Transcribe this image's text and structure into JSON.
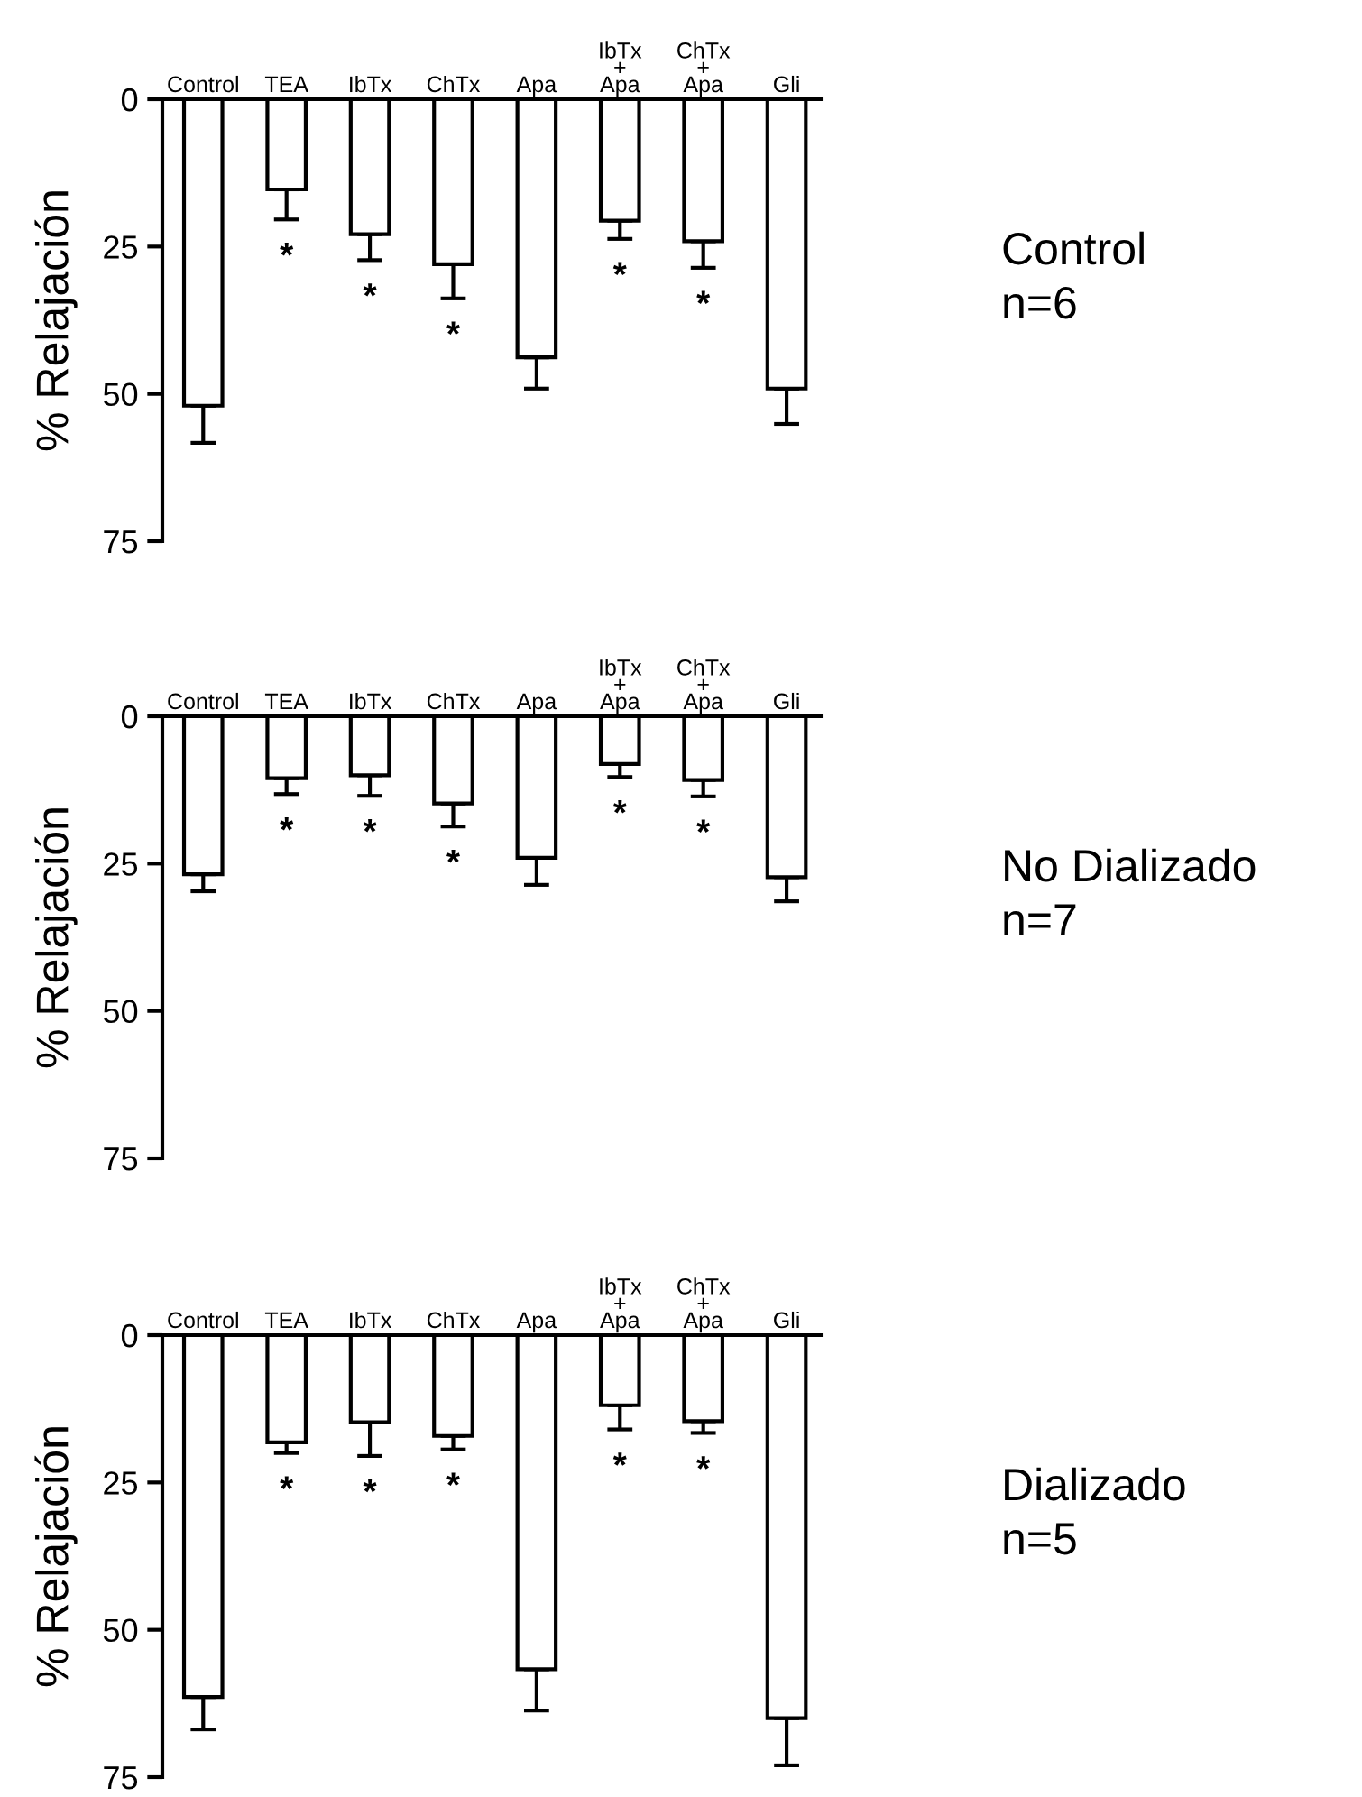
{
  "chart_data": [
    {
      "type": "bar",
      "ylabel": "% Relajación",
      "categories": [
        "Control",
        "TEA",
        "IbTx",
        "ChTx",
        "Apa",
        "IbTx\n+\nApa",
        "ChTx\n+\nApa",
        "Gli"
      ],
      "series": [
        {
          "color": "#ffffff",
          "values": [
            52,
            15.3,
            22.9,
            28,
            43.8,
            20.6,
            24.1,
            49.1
          ],
          "errors": [
            [
              52,
              58.3
            ],
            [
              15.3,
              20.4
            ],
            [
              22.9,
              27.3
            ],
            [
              28,
              33.8
            ],
            [
              43.8,
              49.1
            ],
            [
              20.6,
              23.7
            ],
            [
              24.1,
              28.6
            ],
            [
              49.1,
              55.1
            ]
          ]
        }
      ],
      "ylim": [
        75,
        0
      ],
      "yticks": [
        0,
        25,
        50,
        75
      ],
      "grid": false,
      "legend": false,
      "annotations": [
        {
          "text": "*",
          "x": "TEA",
          "y": 15.3
        },
        {
          "text": "*",
          "x": "IbTx",
          "y": 22.9
        },
        {
          "text": "*",
          "x": "ChTx",
          "y": 28
        },
        {
          "text": "*",
          "x": "IbTx\n+\nApa",
          "y": 20.6
        },
        {
          "text": "*",
          "x": "ChTx\n+\nApa",
          "y": 24.1
        },
        "Control",
        "n=6"
      ]
    },
    {
      "type": "bar",
      "ylabel": "% Relajación",
      "categories": [
        "Control",
        "TEA",
        "IbTx",
        "ChTx",
        "Apa",
        "IbTx\n+\nApa",
        "ChTx\n+\nApa",
        "Gli"
      ],
      "series": [
        {
          "color": "#ffffff",
          "values": [
            26.8,
            10.5,
            10,
            14.8,
            24,
            8.1,
            10.8,
            27.3
          ],
          "errors": [
            [
              26.8,
              29.7
            ],
            [
              10.5,
              13.2
            ],
            [
              10,
              13.5
            ],
            [
              14.8,
              18.7
            ],
            [
              24,
              28.6
            ],
            [
              8.1,
              10.3
            ],
            [
              10.8,
              13.6
            ],
            [
              27.3,
              31.4
            ]
          ]
        }
      ],
      "ylim": [
        75,
        0
      ],
      "yticks": [
        0,
        25,
        50,
        75
      ],
      "grid": false,
      "legend": false,
      "annotations": [
        {
          "text": "*",
          "x": "TEA",
          "y": 10.5
        },
        {
          "text": "*",
          "x": "IbTx",
          "y": 10
        },
        {
          "text": "*",
          "x": "ChTx",
          "y": 14.8
        },
        {
          "text": "*",
          "x": "IbTx\n+\nApa",
          "y": 8.1
        },
        {
          "text": "*",
          "x": "ChTx\n+\nApa",
          "y": 10.8
        },
        "No Dializado",
        "n=7"
      ]
    },
    {
      "type": "bar",
      "ylabel": "% Relajación",
      "categories": [
        "Control",
        "TEA",
        "IbTx",
        "ChTx",
        "Apa",
        "IbTx\n+\nApa",
        "ChTx\n+\nApa",
        "Gli"
      ],
      "series": [
        {
          "color": "#ffffff",
          "values": [
            61.4,
            18.2,
            14.8,
            17.1,
            56.7,
            11.9,
            14.6,
            65
          ],
          "errors": [
            [
              61.4,
              66.9
            ],
            [
              18.2,
              20
            ],
            [
              14.8,
              20.5
            ],
            [
              17.1,
              19.4
            ],
            [
              56.7,
              63.7
            ],
            [
              11.9,
              16
            ],
            [
              14.6,
              16.6
            ],
            [
              65,
              73
            ]
          ]
        }
      ],
      "ylim": [
        75,
        0
      ],
      "yticks": [
        0,
        25,
        50,
        75
      ],
      "grid": false,
      "legend": false,
      "annotations": [
        {
          "text": "*",
          "x": "TEA",
          "y": 18.2
        },
        {
          "text": "*",
          "x": "IbTx",
          "y": 14.8
        },
        {
          "text": "*",
          "x": "ChTx",
          "y": 17.1
        },
        {
          "text": "*",
          "x": "IbTx\n+\nApa",
          "y": 11.9
        },
        {
          "text": "*",
          "x": "ChTx\n+\nApa",
          "y": 14.6
        },
        "Dializado",
        "n=5"
      ]
    }
  ]
}
